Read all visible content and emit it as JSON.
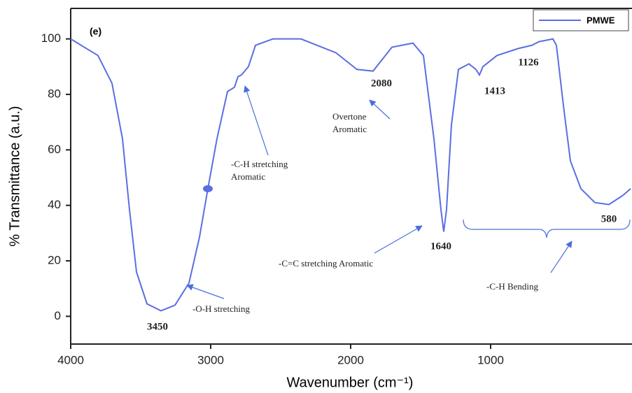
{
  "chart_data": {
    "type": "line",
    "panel_label": "(e)",
    "x_label": "Wavenumber (cm⁻¹)",
    "y_label": "% Transmittance (a.u.)",
    "xlim": [
      4000,
      0
    ],
    "ylim": [
      -10,
      111
    ],
    "xticks": [
      4000,
      3000,
      2000,
      1000
    ],
    "yticks": [
      0,
      20,
      40,
      60,
      80,
      100
    ],
    "legend": "top-right",
    "series": [
      {
        "name": "PMWE",
        "color": "#5b6ee1",
        "x": [
          4000,
          3805,
          3705,
          3630,
          3580,
          3530,
          3455,
          3355,
          3255,
          3155,
          3080,
          3020,
          2955,
          2880,
          2830,
          2805,
          2780,
          2730,
          2680,
          2555,
          2355,
          2105,
          1955,
          1840,
          1705,
          1555,
          1480,
          1405,
          1355,
          1335,
          1315,
          1280,
          1230,
          1155,
          1105,
          1080,
          1055,
          955,
          805,
          705,
          655,
          555,
          530,
          480,
          430,
          355,
          255,
          155,
          55,
          0
        ],
        "values": [
          100,
          94,
          84,
          64,
          38.5,
          16,
          4.5,
          2,
          4,
          12,
          28.5,
          46,
          64,
          81,
          82.6,
          86.4,
          87,
          90,
          97.7,
          100,
          100,
          95,
          89,
          88.4,
          97,
          98.5,
          94,
          64,
          38.5,
          30.5,
          38.5,
          69,
          89,
          91,
          89,
          87,
          90,
          94,
          96.5,
          97.7,
          99,
          100,
          97.7,
          76,
          56,
          46,
          41,
          40.3,
          43.6,
          46
        ]
      }
    ],
    "marker_point": {
      "x": 3020,
      "y": 46
    },
    "annotations": [
      [
        "3450"
      ],
      [
        "-O-H stretching"
      ],
      [
        "-C-H stretching",
        "Aromatic"
      ],
      [
        "2080"
      ],
      [
        "Overtone",
        "Aromatic"
      ],
      [
        "1640"
      ],
      [
        "-C=C stretching Aromatic"
      ],
      [
        "1413"
      ],
      [
        "1126"
      ],
      [
        "580"
      ],
      [
        "-C-H Bending"
      ]
    ]
  }
}
